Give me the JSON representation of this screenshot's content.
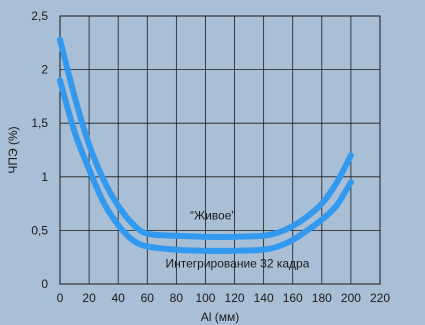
{
  "chart_data": {
    "type": "line",
    "title": "",
    "xlabel": "Al (мм)",
    "ylabel": "ЧПЭ (%)",
    "xlim": [
      0,
      220
    ],
    "ylim": [
      0,
      2.5
    ],
    "x_ticks": [
      0,
      20,
      40,
      60,
      80,
      100,
      120,
      140,
      160,
      180,
      200,
      220
    ],
    "y_ticks": [
      0,
      0.5,
      1,
      1.5,
      2,
      2.5
    ],
    "x_tick_labels": [
      "0",
      "20",
      "40",
      "60",
      "80",
      "100",
      "120",
      "140",
      "160",
      "180",
      "200",
      "220"
    ],
    "y_tick_labels": [
      "0",
      "0,5",
      "1",
      "1,5",
      "2",
      "2,5"
    ],
    "grid": true,
    "line_color": "#3399ee",
    "series": [
      {
        "name": "“Живое”",
        "x": [
          0,
          10,
          20,
          30,
          40,
          50,
          60,
          80,
          100,
          120,
          140,
          150,
          160,
          170,
          180,
          190,
          200
        ],
        "y": [
          2.28,
          1.75,
          1.3,
          0.97,
          0.73,
          0.56,
          0.47,
          0.45,
          0.44,
          0.44,
          0.45,
          0.48,
          0.54,
          0.63,
          0.75,
          0.94,
          1.2
        ]
      },
      {
        "name": "Интегрирование 32 кадра",
        "x": [
          0,
          10,
          20,
          30,
          40,
          50,
          60,
          80,
          100,
          120,
          140,
          150,
          160,
          170,
          180,
          190,
          200
        ],
        "y": [
          1.9,
          1.42,
          1.07,
          0.76,
          0.55,
          0.41,
          0.35,
          0.32,
          0.31,
          0.31,
          0.32,
          0.35,
          0.41,
          0.5,
          0.6,
          0.73,
          0.95
        ]
      }
    ]
  }
}
